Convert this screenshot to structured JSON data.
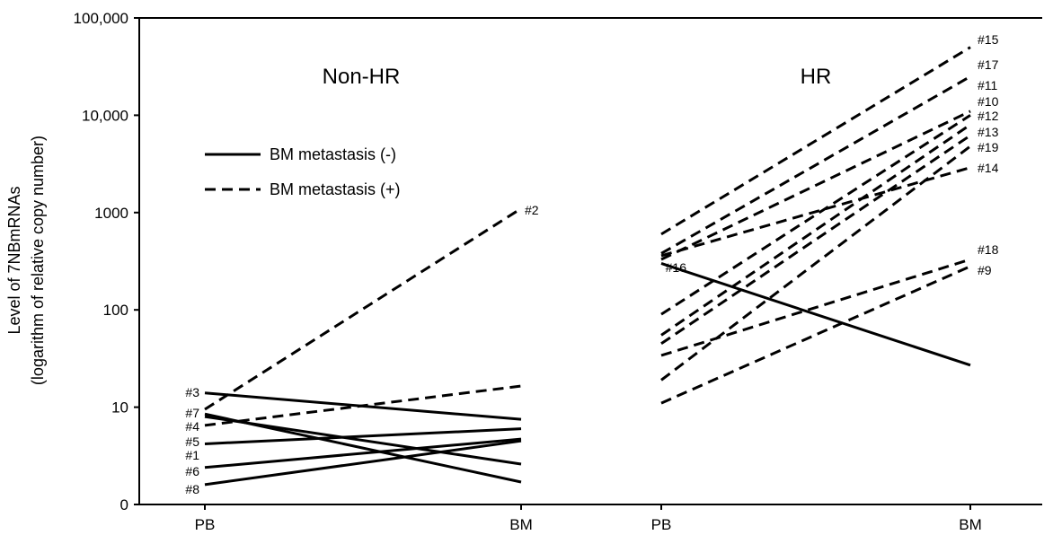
{
  "chart_data": {
    "type": "line",
    "ylabel_lines": [
      "Level of 7NBmRNAs",
      "(logarithm of relative copy number)"
    ],
    "yscale": "log",
    "ylim": [
      1,
      100000
    ],
    "yticks": [
      {
        "value": 1,
        "label": "0"
      },
      {
        "value": 10,
        "label": "10"
      },
      {
        "value": 100,
        "label": "100"
      },
      {
        "value": 1000,
        "label": "1000"
      },
      {
        "value": 10000,
        "label": "10,000"
      },
      {
        "value": 100000,
        "label": "100,000"
      }
    ],
    "legend": {
      "placement": "upper-left",
      "items": [
        {
          "label": "BM metastasis (-)",
          "style": "solid"
        },
        {
          "label": "BM metastasis (+)",
          "style": "dashed"
        }
      ]
    },
    "panels": [
      {
        "title": "Non-HR",
        "categories": [
          "PB",
          "BM"
        ],
        "series": [
          {
            "name": "#2",
            "style": "dashed",
            "values": [
              9.5,
              1100
            ],
            "label_at": "end"
          },
          {
            "name": "#3",
            "style": "solid",
            "values": [
              14,
              7.5
            ],
            "label_at": "start"
          },
          {
            "name": "#7",
            "style": "solid",
            "values": [
              8.5,
              1.7
            ],
            "label_at": "start"
          },
          {
            "name": "#4",
            "style": "solid",
            "values": [
              8,
              2.6
            ],
            "label_at": "start"
          },
          {
            "name": "#5",
            "style": "dashed",
            "values": [
              6.5,
              16.5
            ],
            "label_at": "start"
          },
          {
            "name": "#1",
            "style": "solid",
            "values": [
              4.2,
              6
            ],
            "label_at": "start"
          },
          {
            "name": "#6",
            "style": "solid",
            "values": [
              2.4,
              4.7
            ],
            "label_at": "start"
          },
          {
            "name": "#8",
            "style": "solid",
            "values": [
              1.6,
              4.5
            ],
            "label_at": "start"
          }
        ]
      },
      {
        "title": "HR",
        "categories": [
          "PB",
          "BM"
        ],
        "series": [
          {
            "name": "#16",
            "style": "solid",
            "values": [
              300,
              27
            ],
            "label_at": "start"
          },
          {
            "name": "#15",
            "style": "dashed",
            "values": [
              600,
              50000
            ],
            "label_at": "end"
          },
          {
            "name": "#17",
            "style": "dashed",
            "values": [
              380,
              25000
            ],
            "label_at": "end"
          },
          {
            "name": "#11",
            "style": "dashed",
            "values": [
              330,
              11000
            ],
            "label_at": "end"
          },
          {
            "name": "#10",
            "style": "dashed",
            "values": [
              90,
              10000
            ],
            "label_at": "end"
          },
          {
            "name": "#12",
            "style": "dashed",
            "values": [
              55,
              8000
            ],
            "label_at": "end"
          },
          {
            "name": "#13",
            "style": "dashed",
            "values": [
              45,
              6200
            ],
            "label_at": "end"
          },
          {
            "name": "#19",
            "style": "dashed",
            "values": [
              19,
              4800
            ],
            "label_at": "end"
          },
          {
            "name": "#14",
            "style": "dashed",
            "values": [
              360,
              2900
            ],
            "label_at": "end"
          },
          {
            "name": "#18",
            "style": "dashed",
            "values": [
              34,
              330
            ],
            "label_at": "end"
          },
          {
            "name": "#9",
            "style": "dashed",
            "values": [
              11,
              280
            ],
            "label_at": "end"
          }
        ]
      }
    ]
  }
}
